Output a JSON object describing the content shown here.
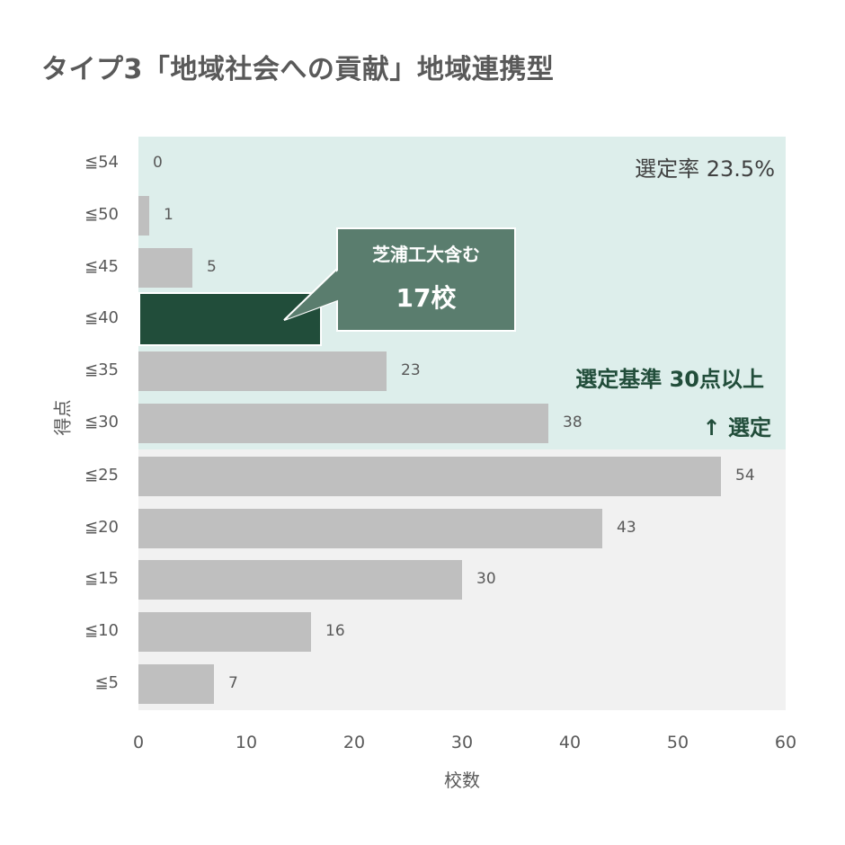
{
  "title": "タイプ3「地域社会への貢献」地域連携型",
  "annotations": {
    "selection_rate": "選定率 23.5%",
    "criteria": "選定基準 30点以上",
    "selected": "↑ 選定",
    "callout_line1": "芝浦工大含む",
    "callout_line2": "17校"
  },
  "colors": {
    "bar": "#bfbfbf",
    "highlight_bar": "#214d3a",
    "selected_band": "#ddeeeb",
    "unselected_band": "#f1f1f1",
    "callout": "#5a7d6e",
    "accent_text": "#214d3a"
  },
  "chart_data": {
    "type": "bar",
    "orientation": "horizontal",
    "title": "タイプ3「地域社会への貢献」地域連携型",
    "xlabel": "校数",
    "ylabel": "得点",
    "categories": [
      "≦54",
      "≦50",
      "≦45",
      "≦40",
      "≦35",
      "≦30",
      "≦25",
      "≦20",
      "≦15",
      "≦10",
      "≦5"
    ],
    "values": [
      0,
      1,
      5,
      17,
      23,
      38,
      54,
      43,
      30,
      16,
      7
    ],
    "value_labels": [
      "0",
      "1",
      "5",
      "",
      "23",
      "38",
      "54",
      "43",
      "30",
      "16",
      "7"
    ],
    "highlight_index": 3,
    "xlim": [
      0,
      60
    ],
    "xticks": [
      "0",
      "10",
      "20",
      "30",
      "40",
      "50",
      "60"
    ],
    "grid": false,
    "legend": "none",
    "annotations": [
      "選定率 23.5%",
      "選定基準 30点以上",
      "↑ 選定",
      "芝浦工大含む 17校"
    ],
    "selected_region": "≦54 to ≦30 (shaded green)"
  }
}
